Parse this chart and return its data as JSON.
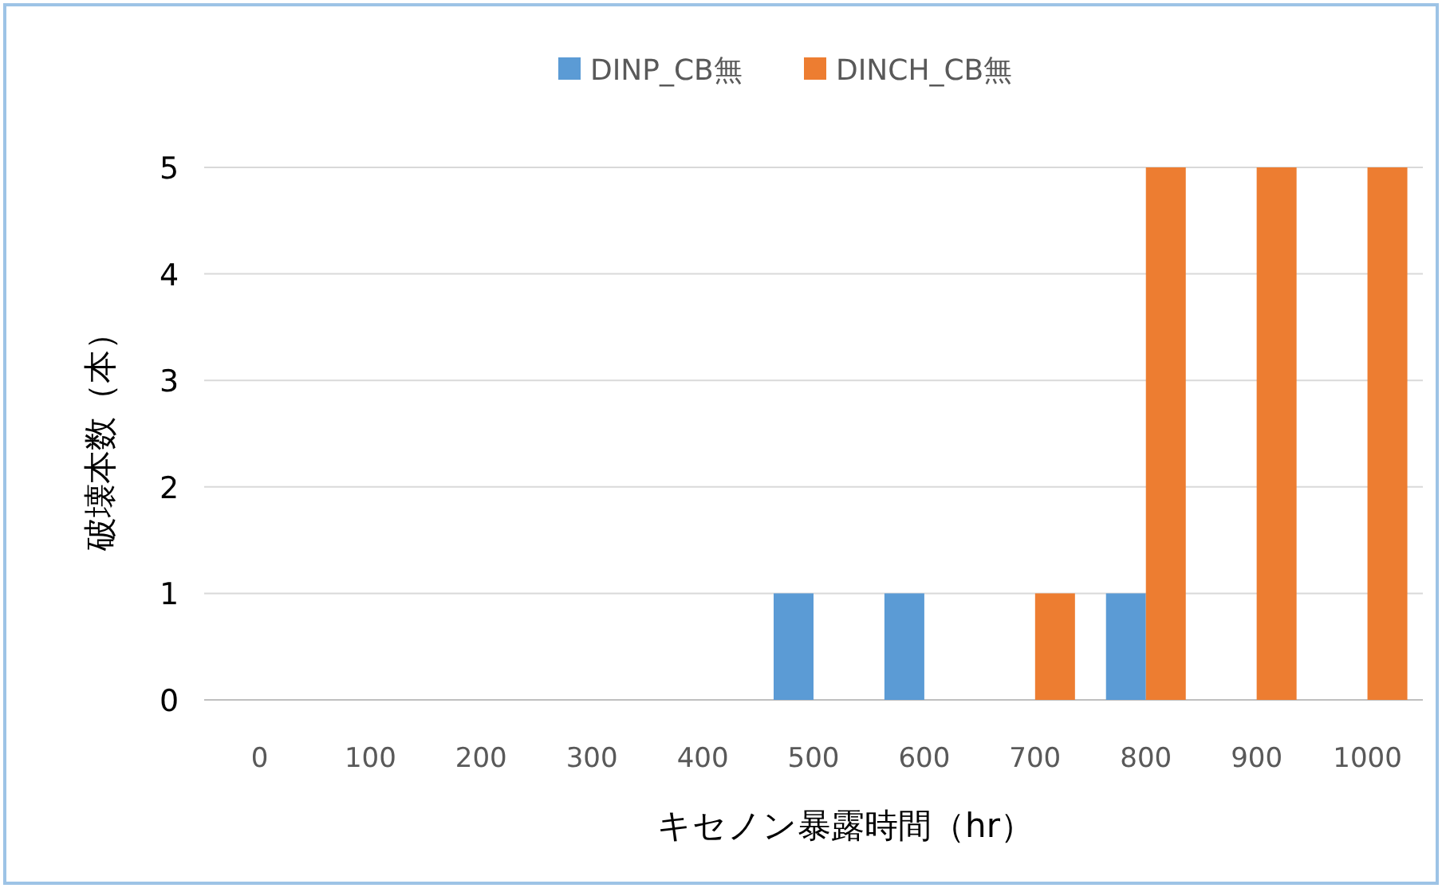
{
  "chart_data": {
    "type": "bar",
    "xlabel": "キセノン暴露時間（hr）",
    "ylabel": "破壊本数（本）",
    "categories": [
      "0",
      "100",
      "200",
      "300",
      "400",
      "500",
      "600",
      "700",
      "800",
      "900",
      "1000"
    ],
    "series": [
      {
        "name": "DINP_CB無",
        "color": "#5b9bd5",
        "values": [
          0,
          0,
          0,
          0,
          0,
          1,
          1,
          0,
          1,
          0,
          0
        ]
      },
      {
        "name": "DINCH_CB無",
        "color": "#ed7d31",
        "values": [
          0,
          0,
          0,
          0,
          0,
          0,
          0,
          1,
          5,
          5,
          5
        ]
      }
    ],
    "ylim": [
      0,
      5
    ],
    "yticks": [
      0,
      1,
      2,
      3,
      4,
      5
    ],
    "grid": "y",
    "legend": "top"
  }
}
